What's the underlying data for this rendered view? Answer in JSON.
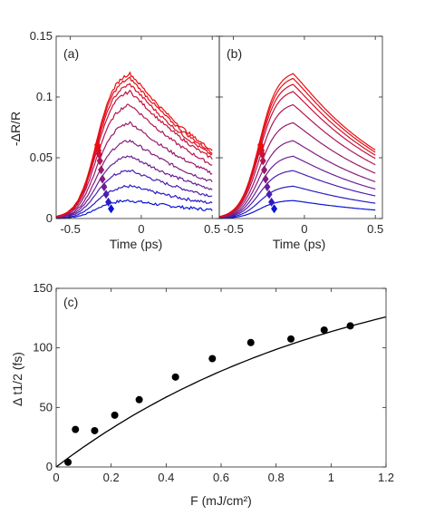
{
  "chart_data": [
    {
      "type": "line",
      "panel_label": "(a)",
      "xlabel": "Time (ps)",
      "ylabel": "-ΔR/R",
      "xlim": [
        -0.6,
        0.55
      ],
      "ylim": [
        0,
        0.15
      ],
      "xticks": [
        "-0.5",
        "0",
        "0.5"
      ],
      "yticks": [
        "0",
        "0.05",
        "0.1",
        "0.15"
      ],
      "curve_shape": {
        "rise_center": -0.32,
        "rise_width": 0.065,
        "decay_tau": 0.75,
        "noise": true
      },
      "series_colors": [
        "#0a14d6",
        "#2b1bc4",
        "#4a1eb0",
        "#6a1f98",
        "#821c80",
        "#99196a",
        "#b01654",
        "#c4133e",
        "#d6102a",
        "#e30e18",
        "#ee0b0b"
      ],
      "peak_values": [
        0.015,
        0.027,
        0.04,
        0.052,
        0.065,
        0.08,
        0.095,
        0.106,
        0.112,
        0.117,
        0.121
      ],
      "half_rise_markers": {
        "x": [
          -0.213,
          -0.232,
          -0.248,
          -0.262,
          -0.274,
          -0.283,
          -0.292,
          -0.298,
          -0.302,
          -0.306,
          -0.309
        ],
        "y": [
          0.008,
          0.0135,
          0.02,
          0.026,
          0.0325,
          0.04,
          0.0475,
          0.053,
          0.056,
          0.0585,
          0.0605
        ]
      }
    },
    {
      "type": "line",
      "panel_label": "(b)",
      "xlabel": "Time (ps)",
      "ylabel": "",
      "xlim": [
        -0.6,
        0.55
      ],
      "ylim": [
        0,
        0.15
      ],
      "xticks": [
        "-0.5",
        "0",
        "0.5"
      ],
      "yticks": [],
      "curve_shape": {
        "rise_center": -0.32,
        "rise_width": 0.065,
        "decay_tau": 0.75,
        "noise": false
      },
      "series_colors": [
        "#0a14d6",
        "#2b1bc4",
        "#4a1eb0",
        "#6a1f98",
        "#821c80",
        "#99196a",
        "#b01654",
        "#c4133e",
        "#d6102a",
        "#e30e18",
        "#ee0b0b"
      ],
      "peak_values": [
        0.015,
        0.027,
        0.04,
        0.052,
        0.065,
        0.08,
        0.095,
        0.106,
        0.112,
        0.117,
        0.121
      ],
      "half_rise_markers": {
        "x": [
          -0.213,
          -0.232,
          -0.248,
          -0.262,
          -0.274,
          -0.283,
          -0.292,
          -0.298,
          -0.302,
          -0.306,
          -0.309
        ],
        "y": [
          0.008,
          0.0135,
          0.02,
          0.026,
          0.0325,
          0.04,
          0.0475,
          0.053,
          0.056,
          0.0585,
          0.0605
        ]
      }
    },
    {
      "type": "scatter",
      "panel_label": "(c)",
      "xlabel": "F (mJ/cm²)",
      "ylabel": "Δ t1/2 (fs)",
      "xlim": [
        0,
        1.2
      ],
      "ylim": [
        0,
        150
      ],
      "xticks": [
        "0",
        "0.2",
        "0.4",
        "0.6",
        "0.8",
        "1",
        "1.2"
      ],
      "yticks": [
        "0",
        "50",
        "100",
        "150"
      ],
      "x": [
        0.043,
        0.07,
        0.14,
        0.213,
        0.302,
        0.434,
        0.568,
        0.708,
        0.854,
        0.975,
        1.07
      ],
      "y": [
        4,
        31.5,
        30.5,
        43.5,
        56.5,
        75.5,
        91,
        104.5,
        107.5,
        115,
        118.5
      ],
      "fit": {
        "x": [
          0,
          0.05,
          0.1,
          0.15,
          0.2,
          0.3,
          0.4,
          0.5,
          0.6,
          0.7,
          0.8,
          0.9,
          1.0,
          1.1,
          1.2
        ],
        "y": [
          0,
          9,
          17.4,
          25.2,
          32.4,
          45.4,
          56.8,
          66.8,
          75.6,
          83.5,
          90.7,
          97.2,
          103.2,
          108.8,
          126
        ]
      }
    }
  ]
}
